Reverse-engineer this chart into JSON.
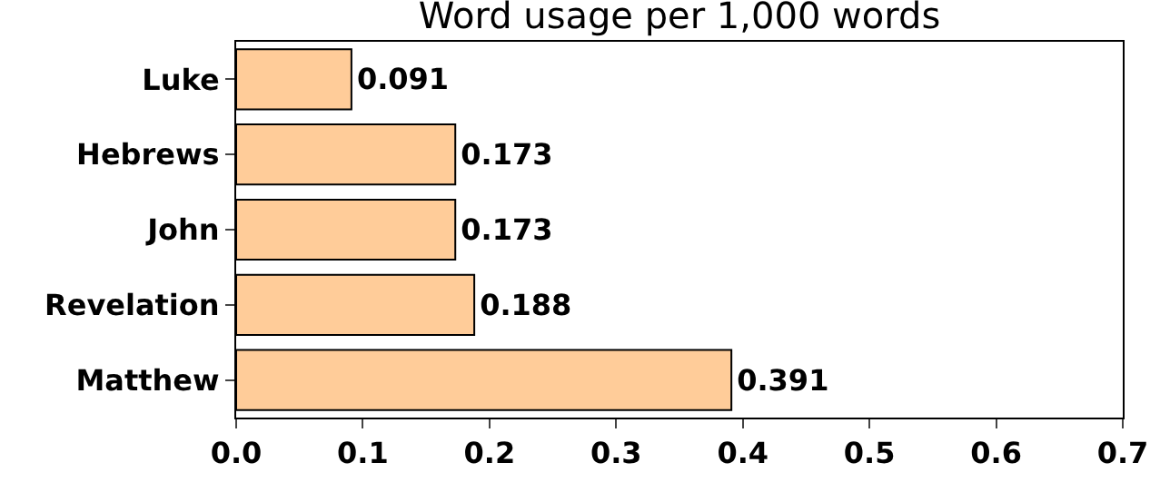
{
  "chart_data": {
    "type": "bar",
    "orientation": "horizontal",
    "title": "Word usage per 1,000 words",
    "categories": [
      "Luke",
      "Hebrews",
      "John",
      "Revelation",
      "Matthew"
    ],
    "values": [
      0.091,
      0.173,
      0.173,
      0.188,
      0.391
    ],
    "color": "#ffcc99",
    "xlim": [
      0,
      0.7
    ],
    "xticks": [
      {
        "value": 0,
        "label": "0.0"
      },
      0.1,
      0.2,
      0.3,
      0.4,
      0.5,
      0.6,
      0.7
    ],
    "data_labels": true,
    "legend": false
  }
}
